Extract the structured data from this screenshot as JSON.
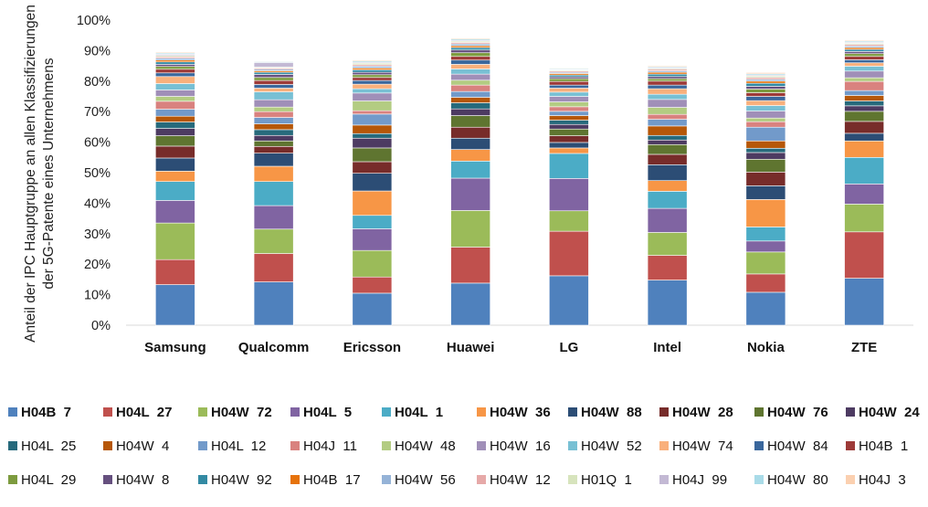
{
  "chart_data": {
    "type": "bar",
    "stacked": true,
    "categories": [
      "Samsung",
      "Qualcomm",
      "Ericsson",
      "Huawei",
      "LG",
      "Intel",
      "Nokia",
      "ZTE"
    ],
    "ylabel_lines": [
      "Anteil der IPC Hauptgruppe an allen Klassifizierungen",
      "der 5G-Patente eines Unternehmens"
    ],
    "ylim": [
      0,
      100
    ],
    "yticks": [
      "0%",
      "10%",
      "20%",
      "30%",
      "40%",
      "50%",
      "60%",
      "70%",
      "80%",
      "90%",
      "100%"
    ],
    "grid": false,
    "legend_position": "bottom",
    "series": [
      {
        "name": "H04B  7",
        "label_bold": true,
        "color": "#4f81bd",
        "values": [
          13.3,
          14.2,
          10.5,
          13.8,
          16.2,
          14.8,
          10.8,
          15.4
        ]
      },
      {
        "name": "H04L  27",
        "label_bold": true,
        "color": "#c0504d",
        "values": [
          8.2,
          9.3,
          5.3,
          11.8,
          14.6,
          8.1,
          6.0,
          15.2
        ]
      },
      {
        "name": "H04W  72",
        "label_bold": true,
        "color": "#9bbb59",
        "values": [
          12.0,
          8.0,
          8.7,
          12.0,
          6.7,
          7.5,
          7.2,
          9.1
        ]
      },
      {
        "name": "H04L  5",
        "label_bold": true,
        "color": "#8064a2",
        "values": [
          7.4,
          7.7,
          7.1,
          10.6,
          10.6,
          7.9,
          3.6,
          6.6
        ]
      },
      {
        "name": "H04L  1",
        "label_bold": true,
        "color": "#4bacc6",
        "values": [
          6.2,
          7.9,
          4.4,
          5.6,
          8.2,
          5.6,
          4.6,
          8.7
        ]
      },
      {
        "name": "H04W  36",
        "label_bold": true,
        "color": "#f79646",
        "values": [
          3.4,
          5.0,
          8.0,
          3.8,
          1.8,
          3.5,
          9.0,
          5.4
        ]
      },
      {
        "name": "H04W  88",
        "label_bold": true,
        "color": "#2c4d75",
        "values": [
          4.3,
          4.3,
          5.8,
          3.7,
          1.8,
          5.2,
          4.5,
          2.5
        ]
      },
      {
        "name": "H04W  28",
        "label_bold": true,
        "color": "#772c2a",
        "values": [
          3.9,
          2.2,
          3.8,
          3.6,
          2.2,
          3.4,
          4.5,
          3.9
        ]
      },
      {
        "name": "H04W  76",
        "label_bold": true,
        "color": "#5f7530",
        "values": [
          3.4,
          1.8,
          4.5,
          3.8,
          2.2,
          3.2,
          4.2,
          3.3
        ]
      },
      {
        "name": "H04W  24",
        "label_bold": true,
        "color": "#4d3b62",
        "values": [
          2.4,
          1.8,
          3.2,
          2.2,
          1.5,
          1.5,
          2.2,
          1.8
        ]
      },
      {
        "name": "H04L  25",
        "label_bold": false,
        "color": "#276a7c",
        "values": [
          2.1,
          1.9,
          1.5,
          2.0,
          1.4,
          1.5,
          1.4,
          1.6
        ]
      },
      {
        "name": "H04W  4",
        "label_bold": false,
        "color": "#b65708",
        "values": [
          1.9,
          1.9,
          2.8,
          1.8,
          1.5,
          3.1,
          2.4,
          1.8
        ]
      },
      {
        "name": "H04L  12",
        "label_bold": false,
        "color": "#729aca",
        "values": [
          2.3,
          2.1,
          3.6,
          1.9,
          1.4,
          2.2,
          4.5,
          1.6
        ]
      },
      {
        "name": "H04J  11",
        "label_bold": false,
        "color": "#d9827f",
        "values": [
          2.6,
          1.9,
          1.1,
          2.1,
          1.5,
          1.6,
          1.8,
          3.0
        ]
      },
      {
        "name": "H04W  48",
        "label_bold": false,
        "color": "#b3cc82",
        "values": [
          1.6,
          1.5,
          3.2,
          1.6,
          1.6,
          2.3,
          1.2,
          1.2
        ]
      },
      {
        "name": "H04W  16",
        "label_bold": false,
        "color": "#a08fb8",
        "values": [
          2.1,
          2.4,
          2.6,
          2.0,
          1.8,
          2.6,
          2.3,
          2.2
        ]
      },
      {
        "name": "H04W  52",
        "label_bold": false,
        "color": "#78c0d4",
        "values": [
          2.1,
          2.6,
          1.4,
          1.7,
          1.4,
          1.7,
          1.8,
          1.6
        ]
      },
      {
        "name": "H04W  74",
        "label_bold": false,
        "color": "#f9b07c",
        "values": [
          2.3,
          1.2,
          1.5,
          1.5,
          1.3,
          1.8,
          1.6,
          1.1
        ]
      },
      {
        "name": "H04W  84",
        "label_bold": false,
        "color": "#3a679c",
        "values": [
          1.2,
          1.2,
          1.2,
          1.4,
          1.0,
          1.2,
          1.4,
          1.0
        ]
      },
      {
        "name": "H04B  1",
        "label_bold": false,
        "color": "#9d3a38",
        "values": [
          1.2,
          1.3,
          1.0,
          1.2,
          1.2,
          1.3,
          1.2,
          1.1
        ]
      },
      {
        "name": "H04L  29",
        "label_bold": false,
        "color": "#7d9b3f",
        "values": [
          0.9,
          1.0,
          0.9,
          1.2,
          0.9,
          0.8,
          1.2,
          0.9
        ]
      },
      {
        "name": "H04W  8",
        "label_bold": false,
        "color": "#66507f",
        "values": [
          0.7,
          1.0,
          0.8,
          0.9,
          0.6,
          0.7,
          0.9,
          0.7
        ]
      },
      {
        "name": "H04W  92",
        "label_bold": false,
        "color": "#338aa3",
        "values": [
          0.8,
          0.7,
          0.8,
          0.8,
          0.6,
          0.8,
          1.0,
          0.7
        ]
      },
      {
        "name": "H04B  17",
        "label_bold": false,
        "color": "#e6730c",
        "values": [
          0.6,
          0.5,
          0.6,
          0.6,
          0.5,
          0.6,
          0.7,
          0.6
        ]
      },
      {
        "name": "H04W  56",
        "label_bold": false,
        "color": "#95b3d7",
        "values": [
          0.6,
          0.5,
          0.6,
          0.6,
          0.4,
          0.5,
          0.6,
          0.5
        ]
      },
      {
        "name": "H04W  12",
        "label_bold": false,
        "color": "#e6a9a8",
        "values": [
          0.5,
          0.4,
          0.5,
          0.5,
          0.4,
          0.5,
          0.6,
          0.5
        ]
      },
      {
        "name": "H01Q  1",
        "label_bold": false,
        "color": "#d7e4bd",
        "values": [
          0.4,
          0.3,
          0.5,
          0.4,
          0.3,
          0.3,
          0.5,
          0.4
        ]
      },
      {
        "name": "H04J  99",
        "label_bold": false,
        "color": "#c3b9d4",
        "values": [
          0.4,
          1.5,
          0.3,
          0.3,
          0.2,
          0.3,
          0.3,
          0.3
        ]
      },
      {
        "name": "H04W  80",
        "label_bold": false,
        "color": "#a9dbe8",
        "values": [
          0.4,
          0.3,
          0.4,
          0.4,
          0.3,
          0.3,
          0.4,
          0.4
        ]
      },
      {
        "name": "H04J  3",
        "label_bold": false,
        "color": "#fbd0b0",
        "values": [
          0.3,
          0.2,
          0.3,
          0.3,
          0.2,
          0.3,
          0.4,
          0.3
        ]
      }
    ]
  }
}
